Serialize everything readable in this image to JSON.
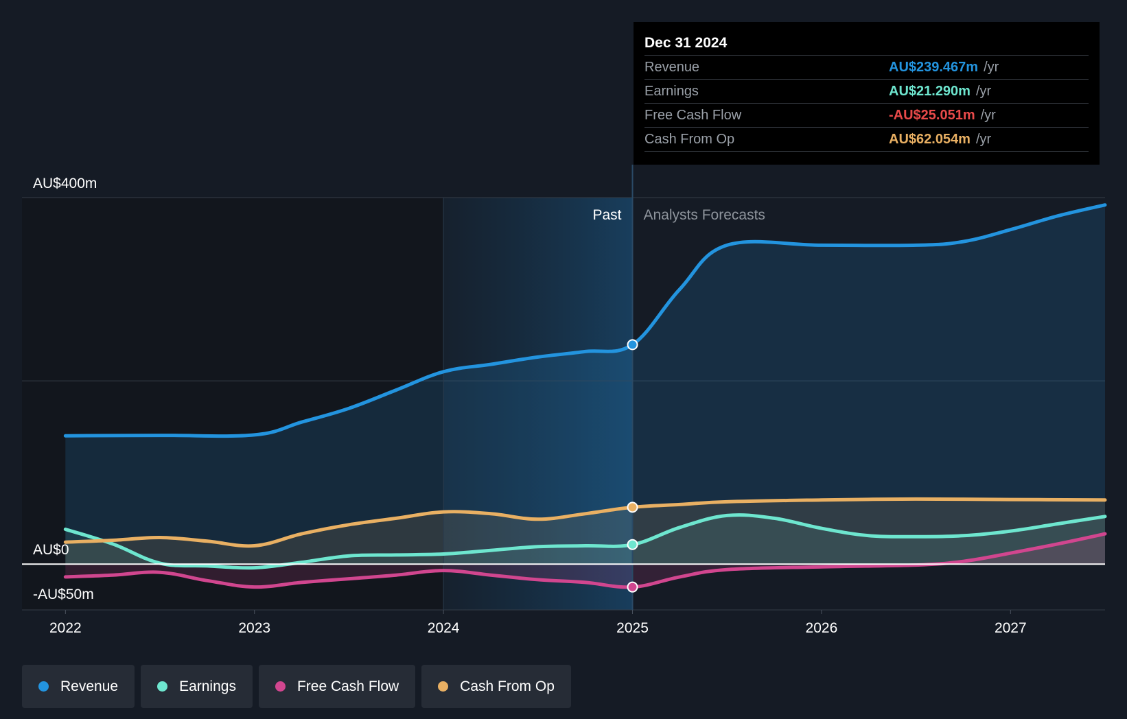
{
  "chart_data": {
    "type": "area",
    "currency_unit": "AU$ m",
    "y_axis": {
      "range": [
        -50,
        400
      ],
      "tick_labels": [
        {
          "value": 400,
          "label": "AU$400m"
        },
        {
          "value": 0,
          "label": "AU$0"
        },
        {
          "value": -50,
          "label": "-AU$50m"
        }
      ]
    },
    "x_axis": {
      "range": [
        2021.77,
        2027.5
      ],
      "tick_labels": [
        {
          "value": 2022,
          "label": "2022"
        },
        {
          "value": 2023,
          "label": "2023"
        },
        {
          "value": 2024,
          "label": "2024"
        },
        {
          "value": 2025,
          "label": "2025"
        },
        {
          "value": 2026,
          "label": "2026"
        },
        {
          "value": 2027,
          "label": "2027"
        }
      ]
    },
    "past_label": "Past",
    "forecast_label": "Analysts Forecasts",
    "divider_x": 2025,
    "past_shade_start_x": 2024,
    "series": [
      {
        "name": "Revenue",
        "color": "#2394df",
        "fill": true,
        "points": [
          [
            2022,
            140
          ],
          [
            2022.5,
            140.5
          ],
          [
            2023,
            141
          ],
          [
            2023.25,
            155
          ],
          [
            2023.5,
            170
          ],
          [
            2023.75,
            190
          ],
          [
            2024,
            210
          ],
          [
            2024.25,
            218
          ],
          [
            2024.5,
            226
          ],
          [
            2024.75,
            232
          ],
          [
            2025,
            239.5
          ],
          [
            2025.25,
            300
          ],
          [
            2025.5,
            348
          ],
          [
            2026,
            348
          ],
          [
            2026.5,
            348
          ],
          [
            2026.75,
            352
          ],
          [
            2027,
            365
          ],
          [
            2027.25,
            380
          ],
          [
            2027.5,
            392
          ]
        ]
      },
      {
        "name": "Earnings",
        "color": "#6ee6cf",
        "fill": false,
        "points": [
          [
            2022,
            38
          ],
          [
            2022.25,
            22
          ],
          [
            2022.5,
            1
          ],
          [
            2022.75,
            -2
          ],
          [
            2023,
            -4
          ],
          [
            2023.25,
            2
          ],
          [
            2023.5,
            9
          ],
          [
            2023.75,
            10
          ],
          [
            2024,
            11
          ],
          [
            2024.25,
            15
          ],
          [
            2024.5,
            19
          ],
          [
            2024.75,
            20
          ],
          [
            2025,
            21.3
          ],
          [
            2025.25,
            40
          ],
          [
            2025.5,
            53
          ],
          [
            2025.75,
            50
          ],
          [
            2026,
            39
          ],
          [
            2026.25,
            31
          ],
          [
            2026.5,
            30
          ],
          [
            2026.75,
            31
          ],
          [
            2027,
            36
          ],
          [
            2027.25,
            44
          ],
          [
            2027.5,
            52
          ]
        ]
      },
      {
        "name": "Free Cash Flow",
        "color": "#d1468f",
        "fill": false,
        "points": [
          [
            2022,
            -14
          ],
          [
            2022.25,
            -12
          ],
          [
            2022.5,
            -9
          ],
          [
            2022.75,
            -18
          ],
          [
            2023,
            -25
          ],
          [
            2023.25,
            -20
          ],
          [
            2023.5,
            -16
          ],
          [
            2023.75,
            -12
          ],
          [
            2024,
            -7
          ],
          [
            2024.25,
            -12
          ],
          [
            2024.5,
            -17
          ],
          [
            2024.75,
            -20
          ],
          [
            2025,
            -25.05
          ],
          [
            2025.25,
            -14
          ],
          [
            2025.5,
            -6
          ],
          [
            2026,
            -3
          ],
          [
            2026.5,
            -1
          ],
          [
            2026.75,
            3
          ],
          [
            2027,
            12
          ],
          [
            2027.25,
            22
          ],
          [
            2027.5,
            33
          ]
        ]
      },
      {
        "name": "Cash From Op",
        "color": "#e9b063",
        "fill": false,
        "points": [
          [
            2022,
            24
          ],
          [
            2022.25,
            26
          ],
          [
            2022.5,
            29
          ],
          [
            2022.75,
            25
          ],
          [
            2023,
            20
          ],
          [
            2023.25,
            33
          ],
          [
            2023.5,
            43
          ],
          [
            2023.75,
            50
          ],
          [
            2024,
            57
          ],
          [
            2024.25,
            55
          ],
          [
            2024.5,
            49
          ],
          [
            2024.75,
            55
          ],
          [
            2025,
            62.05
          ],
          [
            2025.25,
            65
          ],
          [
            2025.5,
            68
          ],
          [
            2026,
            70
          ],
          [
            2026.5,
            71
          ],
          [
            2027,
            70.5
          ],
          [
            2027.5,
            70
          ]
        ]
      }
    ]
  },
  "tooltip": {
    "date": "Dec 31 2024",
    "rows": [
      {
        "label": "Revenue",
        "value": "AU$239.467m",
        "unit": "/yr",
        "color": "#2394df"
      },
      {
        "label": "Earnings",
        "value": "AU$21.290m",
        "unit": "/yr",
        "color": "#6ee6cf"
      },
      {
        "label": "Free Cash Flow",
        "value": "-AU$25.051m",
        "unit": "/yr",
        "color": "#e84a4a"
      },
      {
        "label": "Cash From Op",
        "value": "AU$62.054m",
        "unit": "/yr",
        "color": "#e9b063"
      }
    ]
  },
  "legend": [
    {
      "label": "Revenue",
      "color": "#2394df"
    },
    {
      "label": "Earnings",
      "color": "#6ee6cf"
    },
    {
      "label": "Free Cash Flow",
      "color": "#d1468f"
    },
    {
      "label": "Cash From Op",
      "color": "#e9b063"
    }
  ]
}
